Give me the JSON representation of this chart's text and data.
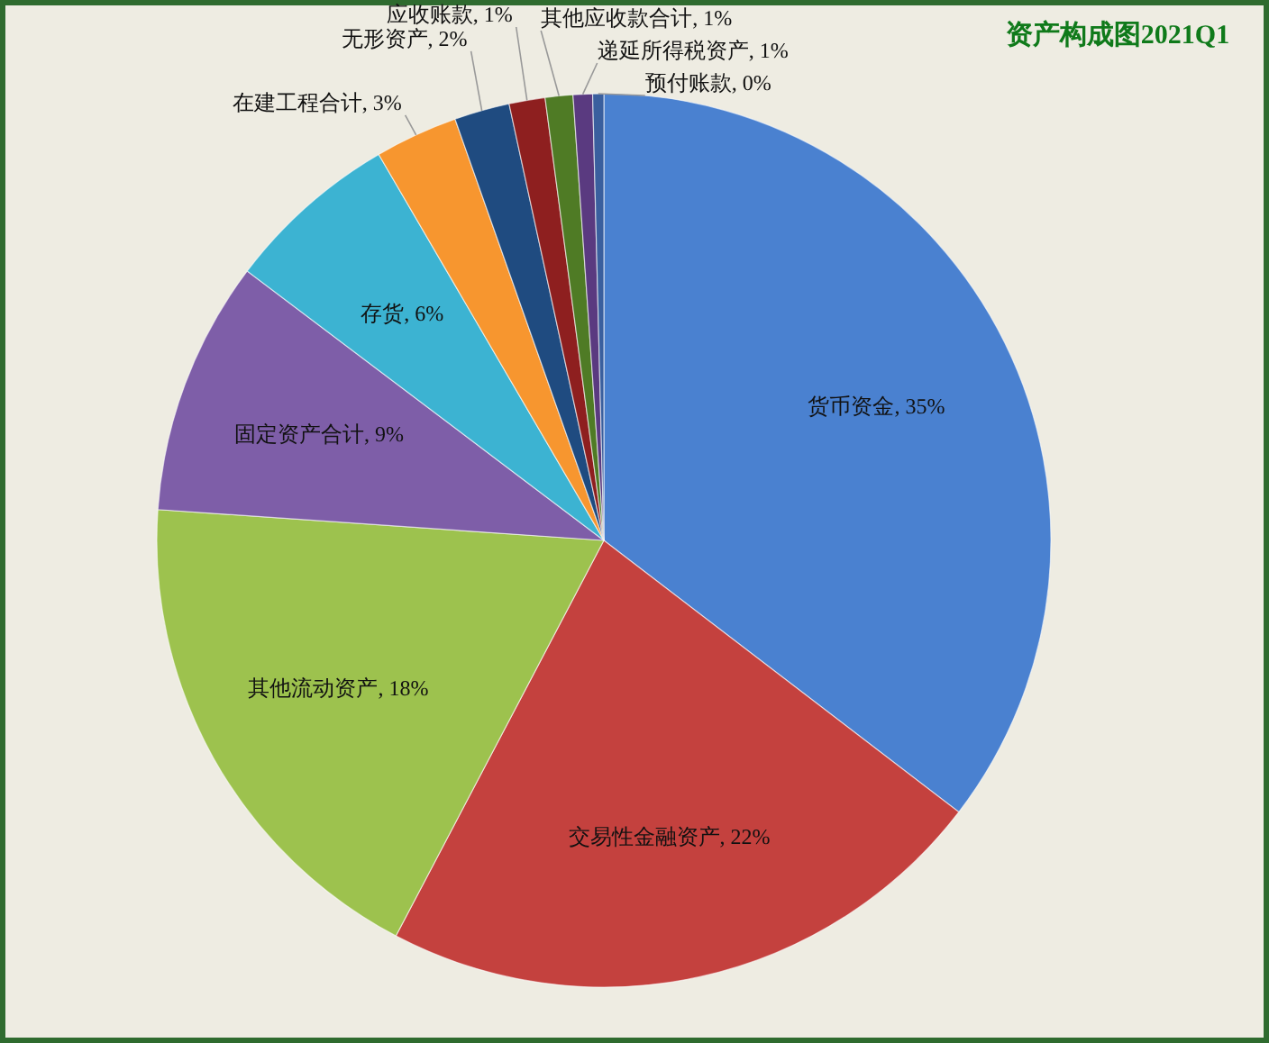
{
  "chart_data": {
    "type": "pie",
    "title": "资产构成图2021Q1",
    "categories": [
      "货币资金",
      "交易性金融资产",
      "其他流动资产",
      "固定资产合计",
      "存货",
      "在建工程合计",
      "无形资产",
      "应收账款",
      "其他应收款合计",
      "递延所得税资产",
      "预付账款"
    ],
    "values": [
      35.4,
      22.3,
      18.4,
      9.2,
      6.3,
      3.0,
      2.0,
      1.3,
      1.0,
      0.7,
      0.4
    ],
    "value_labels": [
      "35%",
      "22%",
      "18%",
      "9%",
      "6%",
      "3%",
      "2%",
      "1%",
      "1%",
      "1%",
      "0%"
    ],
    "colors": [
      "#4a81d0",
      "#c4413e",
      "#9dc24e",
      "#7e5ea8",
      "#3cb3d2",
      "#f7962f",
      "#1f4b80",
      "#8e1f1f",
      "#4f7b25",
      "#5a3a80",
      "#3a5f9e"
    ]
  }
}
